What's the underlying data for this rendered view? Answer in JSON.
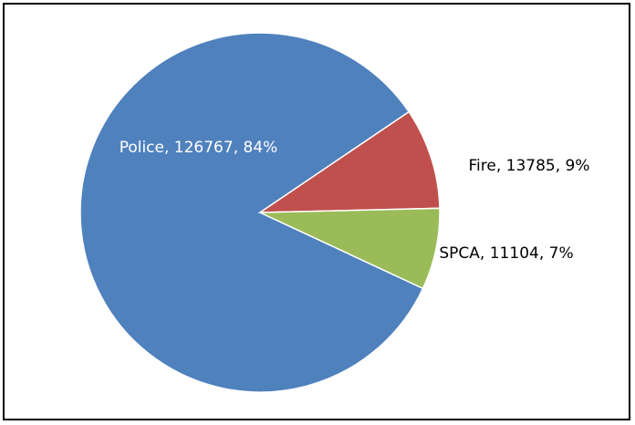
{
  "chart_data": {
    "type": "pie",
    "values": [
      126767,
      13785,
      11104
    ],
    "value_labels": [
      "Police, 126767, 84%",
      "Fire, 13785, 9%",
      "SPCA, 11104, 7%"
    ],
    "colors": [
      "#4f81bd",
      "#c0504d",
      "#9bbb59"
    ]
  }
}
